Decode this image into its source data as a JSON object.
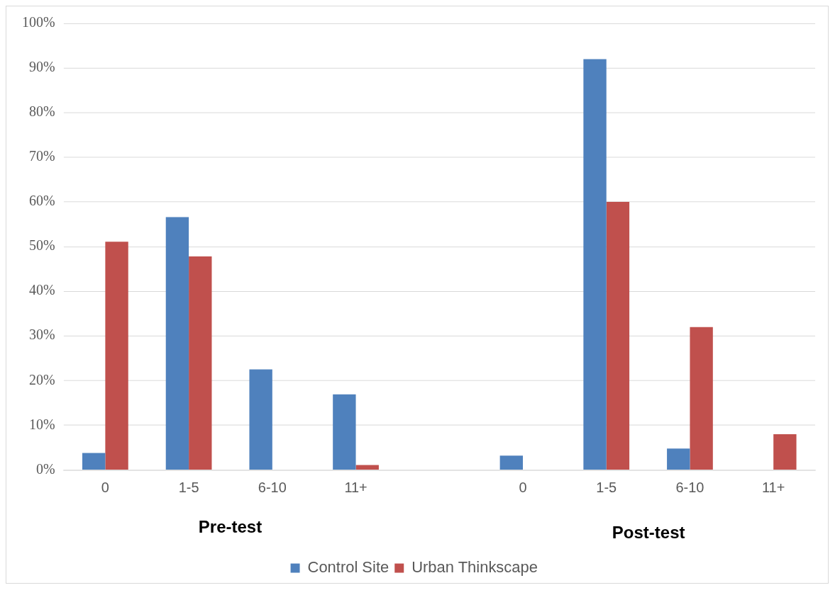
{
  "chart_data": {
    "type": "bar",
    "categories": [
      "0",
      "1-5",
      "6-10",
      "11+",
      null,
      "0",
      "1-5",
      "6-10",
      "11+"
    ],
    "series": [
      {
        "name": "Control Site",
        "color": "#4f81bd",
        "values": [
          3.8,
          56.6,
          22.5,
          16.9,
          null,
          3.2,
          92.0,
          4.8,
          0
        ]
      },
      {
        "name": "Urban Thinkscape",
        "color": "#c0504d",
        "values": [
          51.1,
          47.8,
          0,
          1.1,
          null,
          0,
          60.0,
          32.0,
          8.0
        ]
      }
    ],
    "ylim": [
      0,
      100
    ],
    "yticks": [
      {
        "value": 0,
        "label": "0%"
      },
      {
        "value": 10,
        "label": "10%"
      },
      {
        "value": 20,
        "label": "20%"
      },
      {
        "value": 30,
        "label": "30%"
      },
      {
        "value": 40,
        "label": "40%"
      },
      {
        "value": 50,
        "label": "50%"
      },
      {
        "value": 60,
        "label": "60%"
      },
      {
        "value": 70,
        "label": "70%"
      },
      {
        "value": 80,
        "label": "80%"
      },
      {
        "value": 90,
        "label": "90%"
      },
      {
        "value": 100,
        "label": "100%"
      }
    ],
    "grid": "y",
    "legend": "bottom",
    "annotations": [
      "Pre-test",
      "Post-test"
    ]
  }
}
